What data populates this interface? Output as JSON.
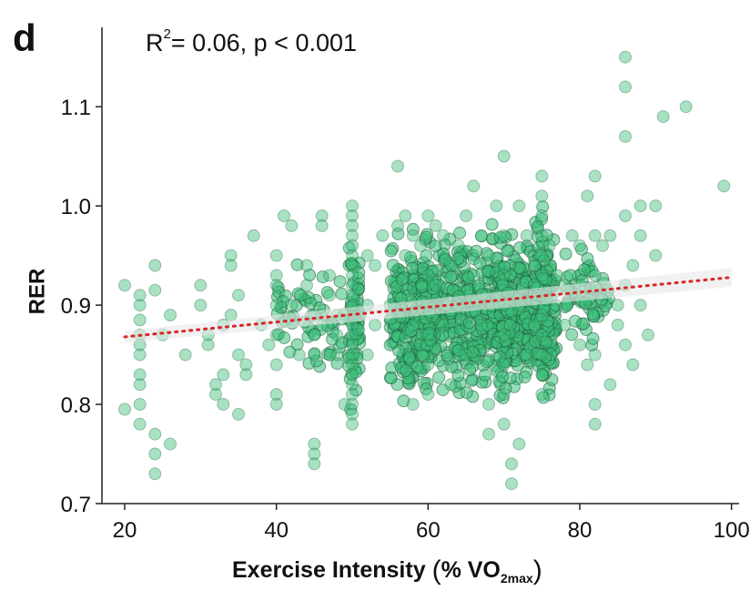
{
  "panel_label": "d",
  "annotation": {
    "r2_prefix": "R",
    "r2_exp": "2",
    "r2_rest": "= 0.06, p < 0.001"
  },
  "axes": {
    "ylabel": "RER",
    "xlabel_main": "Exercise Intensity",
    "xlabel_open": "(",
    "xlabel_pct": "% VO",
    "xlabel_sub": "2max",
    "xlabel_close": ")"
  },
  "colors": {
    "points": "#3dbf7a",
    "point_edge": "#1f5a3c",
    "trend": "#d62728",
    "ci_band": "#e8e8e8",
    "axis": "#222222"
  },
  "chart_data": {
    "type": "scatter",
    "xlim": [
      17,
      101
    ],
    "ylim": [
      0.7,
      1.18
    ],
    "xticks": [
      20,
      40,
      60,
      80,
      100
    ],
    "yticks": [
      0.7,
      0.8,
      0.9,
      1.0,
      1.1
    ],
    "ytick_labels": [
      "0.7",
      "0.8",
      "0.9",
      "1.0",
      "1.1"
    ],
    "grid": false,
    "trend": {
      "x": [
        20,
        100
      ],
      "y": [
        0.868,
        0.928
      ],
      "style": "dotted"
    },
    "points": [
      [
        20,
        0.92
      ],
      [
        20,
        0.795
      ],
      [
        22,
        0.87
      ],
      [
        22,
        0.885
      ],
      [
        22,
        0.9
      ],
      [
        22,
        0.91
      ],
      [
        22,
        0.86
      ],
      [
        22,
        0.85
      ],
      [
        22,
        0.83
      ],
      [
        22,
        0.82
      ],
      [
        22,
        0.8
      ],
      [
        22,
        0.78
      ],
      [
        24,
        0.94
      ],
      [
        24,
        0.915
      ],
      [
        24,
        0.77
      ],
      [
        24,
        0.75
      ],
      [
        24,
        0.73
      ],
      [
        26,
        0.76
      ],
      [
        25,
        0.87
      ],
      [
        26,
        0.89
      ],
      [
        28,
        0.85
      ],
      [
        30,
        0.92
      ],
      [
        30,
        0.9
      ],
      [
        31,
        0.87
      ],
      [
        31,
        0.86
      ],
      [
        32,
        0.82
      ],
      [
        32,
        0.81
      ],
      [
        33,
        0.8
      ],
      [
        33,
        0.83
      ],
      [
        33,
        0.88
      ],
      [
        34,
        0.89
      ],
      [
        34,
        0.95
      ],
      [
        34,
        0.94
      ],
      [
        35,
        0.91
      ],
      [
        35,
        0.85
      ],
      [
        35,
        0.79
      ],
      [
        36,
        0.84
      ],
      [
        36,
        0.83
      ],
      [
        37,
        0.97
      ],
      [
        38,
        0.88
      ],
      [
        39,
        0.86
      ],
      [
        40,
        0.95
      ],
      [
        40,
        0.93
      ],
      [
        40,
        0.92
      ],
      [
        40,
        0.9
      ],
      [
        40,
        0.87
      ],
      [
        40,
        0.84
      ],
      [
        40,
        0.81
      ],
      [
        40,
        0.8
      ],
      [
        41,
        0.99
      ],
      [
        42,
        0.98
      ],
      [
        42,
        0.9
      ],
      [
        43,
        0.85
      ],
      [
        44,
        0.94
      ],
      [
        44,
        0.92
      ],
      [
        45,
        0.89
      ],
      [
        45,
        0.87
      ],
      [
        45,
        0.85
      ],
      [
        45,
        0.76
      ],
      [
        45,
        0.75
      ],
      [
        45,
        0.74
      ],
      [
        46,
        0.99
      ],
      [
        46,
        0.98
      ],
      [
        46,
        0.88
      ],
      [
        47,
        0.93
      ],
      [
        47,
        0.91
      ],
      [
        48,
        0.89
      ],
      [
        48,
        0.87
      ],
      [
        48,
        0.85
      ],
      [
        49,
        0.8
      ],
      [
        50,
        1.0
      ],
      [
        50,
        0.99
      ],
      [
        50,
        0.98
      ],
      [
        50,
        0.97
      ],
      [
        50,
        0.96
      ],
      [
        50,
        0.95
      ],
      [
        50,
        0.94
      ],
      [
        50,
        0.93
      ],
      [
        50,
        0.92
      ],
      [
        50,
        0.91
      ],
      [
        50,
        0.9
      ],
      [
        50,
        0.89
      ],
      [
        50,
        0.88
      ],
      [
        50,
        0.87
      ],
      [
        50,
        0.86
      ],
      [
        50,
        0.85
      ],
      [
        50,
        0.84
      ],
      [
        50,
        0.83
      ],
      [
        50,
        0.82
      ],
      [
        50,
        0.81
      ],
      [
        50,
        0.8
      ],
      [
        50,
        0.79
      ],
      [
        50,
        0.78
      ],
      [
        52,
        0.95
      ],
      [
        52,
        0.9
      ],
      [
        52,
        0.85
      ],
      [
        53,
        0.94
      ],
      [
        53,
        0.88
      ],
      [
        54,
        0.97
      ],
      [
        55,
        0.9
      ],
      [
        56,
        1.04
      ],
      [
        56,
        0.98
      ],
      [
        57,
        0.99
      ],
      [
        57,
        0.95
      ],
      [
        58,
        0.97
      ],
      [
        58,
        0.88
      ],
      [
        58,
        0.8
      ],
      [
        59,
        0.96
      ],
      [
        59,
        0.86
      ],
      [
        60,
        0.99
      ],
      [
        60,
        0.93
      ],
      [
        60,
        0.9
      ],
      [
        60,
        0.87
      ],
      [
        60,
        0.84
      ],
      [
        60,
        0.81
      ],
      [
        61,
        0.98
      ],
      [
        61,
        0.92
      ],
      [
        62,
        0.97
      ],
      [
        62,
        0.88
      ],
      [
        63,
        0.94
      ],
      [
        63,
        0.82
      ],
      [
        64,
        0.96
      ],
      [
        64,
        0.9
      ],
      [
        65,
        0.99
      ],
      [
        65,
        0.85
      ],
      [
        66,
        1.02
      ],
      [
        66,
        0.93
      ],
      [
        67,
        0.97
      ],
      [
        67,
        0.88
      ],
      [
        68,
        0.95
      ],
      [
        68,
        0.8
      ],
      [
        68,
        0.77
      ],
      [
        69,
        1.0
      ],
      [
        69,
        0.91
      ],
      [
        70,
        1.05
      ],
      [
        70,
        0.97
      ],
      [
        70,
        0.93
      ],
      [
        70,
        0.9
      ],
      [
        70,
        0.87
      ],
      [
        70,
        0.84
      ],
      [
        70,
        0.81
      ],
      [
        70,
        0.78
      ],
      [
        71,
        0.72
      ],
      [
        71,
        0.74
      ],
      [
        72,
        1.0
      ],
      [
        72,
        0.76
      ],
      [
        72,
        0.9
      ],
      [
        73,
        0.97
      ],
      [
        73,
        0.85
      ],
      [
        74,
        0.94
      ],
      [
        74,
        0.88
      ],
      [
        75,
        1.03
      ],
      [
        75,
        1.01
      ],
      [
        75,
        0.99
      ],
      [
        75,
        0.97
      ],
      [
        75,
        0.95
      ],
      [
        75,
        0.93
      ],
      [
        75,
        0.91
      ],
      [
        75,
        0.89
      ],
      [
        75,
        0.87
      ],
      [
        75,
        0.85
      ],
      [
        75,
        0.83
      ],
      [
        75,
        0.81
      ],
      [
        76,
        0.96
      ],
      [
        77,
        0.93
      ],
      [
        78,
        0.92
      ],
      [
        78,
        0.88
      ],
      [
        79,
        0.97
      ],
      [
        80,
        0.96
      ],
      [
        80,
        0.92
      ],
      [
        80,
        0.86
      ],
      [
        81,
        1.01
      ],
      [
        81,
        0.84
      ],
      [
        82,
        1.03
      ],
      [
        82,
        0.97
      ],
      [
        82,
        0.93
      ],
      [
        82,
        0.85
      ],
      [
        82,
        0.8
      ],
      [
        82,
        0.78
      ],
      [
        83,
        0.96
      ],
      [
        84,
        0.97
      ],
      [
        84,
        0.82
      ],
      [
        85,
        0.9
      ],
      [
        85,
        0.88
      ],
      [
        86,
        1.15
      ],
      [
        86,
        1.12
      ],
      [
        86,
        1.07
      ],
      [
        86,
        0.99
      ],
      [
        86,
        0.92
      ],
      [
        86,
        0.86
      ],
      [
        87,
        0.94
      ],
      [
        87,
        0.84
      ],
      [
        88,
        1.0
      ],
      [
        88,
        0.97
      ],
      [
        88,
        0.9
      ],
      [
        89,
        0.87
      ],
      [
        90,
        1.0
      ],
      [
        90,
        0.95
      ],
      [
        91,
        1.09
      ],
      [
        94,
        1.1
      ],
      [
        99,
        1.02
      ]
    ],
    "dense_regions": [
      {
        "x": [
          55,
          77
        ],
        "y": [
          0.79,
          0.99
        ],
        "n": 800
      },
      {
        "x": [
          49.5,
          51
        ],
        "y": [
          0.78,
          0.99
        ],
        "n": 60
      },
      {
        "x": [
          59,
          61
        ],
        "y": [
          0.8,
          0.98
        ],
        "n": 60
      },
      {
        "x": [
          69,
          71
        ],
        "y": [
          0.79,
          0.99
        ],
        "n": 70
      },
      {
        "x": [
          74,
          76
        ],
        "y": [
          0.8,
          1.02
        ],
        "n": 60
      },
      {
        "x": [
          78,
          84
        ],
        "y": [
          0.84,
          0.97
        ],
        "n": 60
      },
      {
        "x": [
          40,
          49
        ],
        "y": [
          0.82,
          0.95
        ],
        "n": 60
      }
    ]
  }
}
